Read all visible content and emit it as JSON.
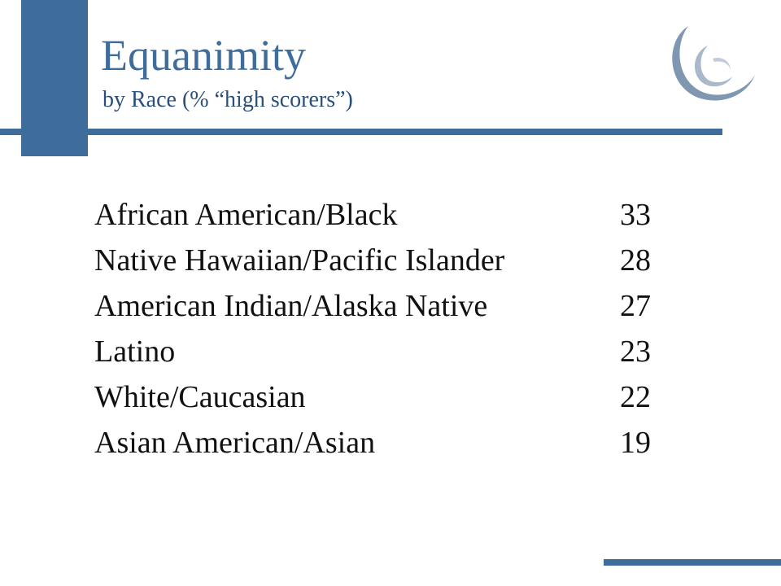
{
  "slide": {
    "title": "Equanimity",
    "subtitle": "by Race (% “high scorers”)"
  },
  "rows": [
    {
      "label": "African American/Black",
      "value": "33"
    },
    {
      "label": "Native Hawaiian/Pacific Islander",
      "value": "28"
    },
    {
      "label": "American Indian/Alaska Native",
      "value": "27"
    },
    {
      "label": "Latino",
      "value": "23"
    },
    {
      "label": "White/Caucasian",
      "value": "22"
    },
    {
      "label": "Asian American/Asian",
      "value": "19"
    }
  ],
  "colors": {
    "accent": "#3f6d9b",
    "text": "#111111"
  },
  "icons": {
    "logo": "swirl-logo-icon"
  }
}
